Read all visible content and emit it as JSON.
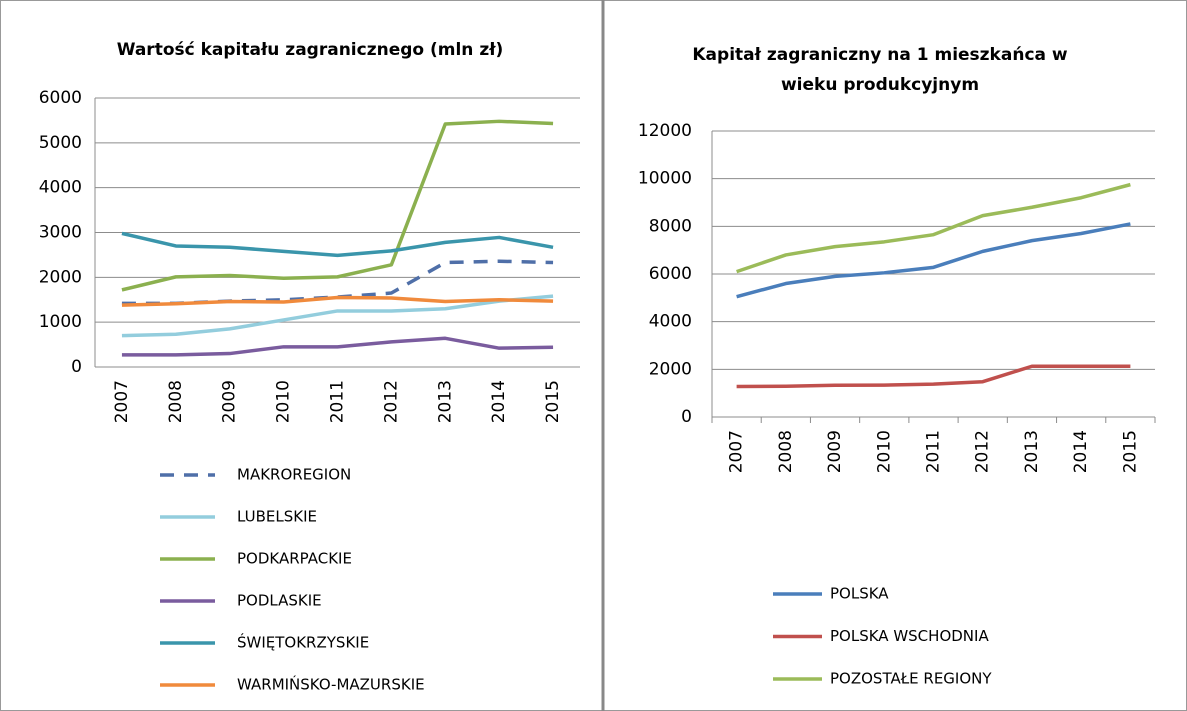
{
  "chart_data": [
    {
      "type": "line",
      "title": "Wartość kapitału zagranicznego (mln zł)",
      "categories": [
        "2007",
        "2008",
        "2009",
        "2010",
        "2011",
        "2012",
        "2013",
        "2014",
        "2015"
      ],
      "ylim": [
        0,
        6000
      ],
      "yticks": [
        0,
        1000,
        2000,
        3000,
        4000,
        5000,
        6000
      ],
      "grid": true,
      "legend": "bottom",
      "series": [
        {
          "name": "MAKROREGION",
          "color": "#4f6fa8",
          "dashed": true,
          "values": [
            1420,
            1420,
            1470,
            1500,
            1560,
            1650,
            2330,
            2360,
            2330
          ]
        },
        {
          "name": "LUBELSKIE",
          "color": "#93cddd",
          "values": [
            700,
            730,
            850,
            1050,
            1250,
            1250,
            1300,
            1470,
            1580
          ]
        },
        {
          "name": "PODKARPACKIE",
          "color": "#8bb04f",
          "values": [
            1720,
            2010,
            2040,
            1980,
            2010,
            2280,
            5420,
            5480,
            5430
          ]
        },
        {
          "name": "PODLASKIE",
          "color": "#7a5c9e",
          "values": [
            270,
            270,
            300,
            450,
            450,
            560,
            640,
            420,
            440
          ]
        },
        {
          "name": "ŚWIĘTOKRZYSKIE",
          "color": "#3a95ab",
          "values": [
            2980,
            2700,
            2670,
            2580,
            2490,
            2590,
            2780,
            2890,
            2670
          ]
        },
        {
          "name": "WARMIŃSKO-MAZURSKIE",
          "color": "#f08a3c",
          "values": [
            1380,
            1410,
            1460,
            1450,
            1550,
            1540,
            1460,
            1500,
            1470
          ]
        }
      ]
    },
    {
      "type": "line",
      "title": "Kapitał zagraniczny na 1 mieszkańca w wieku produkcyjnym",
      "categories": [
        "2007",
        "2008",
        "2009",
        "2010",
        "2011",
        "2012",
        "2013",
        "2014",
        "2015"
      ],
      "ylim": [
        0,
        12000
      ],
      "yticks": [
        0,
        2000,
        4000,
        6000,
        8000,
        10000,
        12000
      ],
      "grid": true,
      "legend": "bottom",
      "series": [
        {
          "name": "POLSKA",
          "color": "#4a7ebb",
          "values": [
            5050,
            5600,
            5900,
            6050,
            6280,
            6950,
            7400,
            7700,
            8100
          ]
        },
        {
          "name": "POLSKA WSCHODNIA",
          "color": "#c0504d",
          "values": [
            1280,
            1290,
            1330,
            1340,
            1380,
            1480,
            2130,
            2130,
            2130
          ]
        },
        {
          "name": "POZOSTAŁE REGIONY",
          "color": "#9bbb59",
          "values": [
            6100,
            6800,
            7150,
            7350,
            7650,
            8450,
            8800,
            9200,
            9750
          ]
        }
      ]
    }
  ]
}
